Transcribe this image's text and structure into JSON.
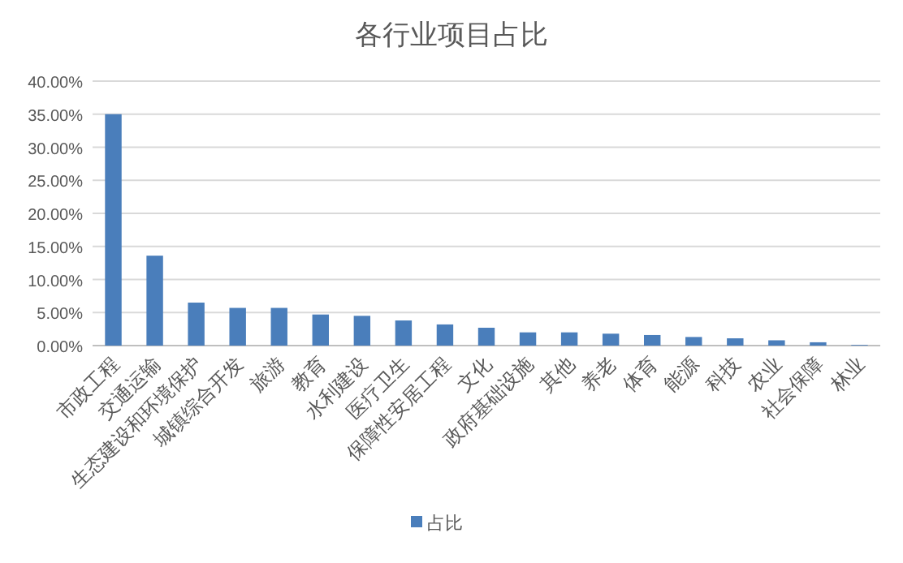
{
  "chart_data": {
    "type": "bar",
    "title": "各行业项目占比",
    "categories": [
      "市政工程",
      "交通运输",
      "生态建设和环境保护",
      "城镇综合开发",
      "旅游",
      "教育",
      "水利建设",
      "医疗卫生",
      "保障性安居工程",
      "文化",
      "政府基础设施",
      "其他",
      "养老",
      "体育",
      "能源",
      "科技",
      "农业",
      "社会保障",
      "林业"
    ],
    "series": [
      {
        "name": "占比",
        "color": "#4a7ebb",
        "values": [
          35.0,
          13.6,
          6.5,
          5.7,
          5.7,
          4.7,
          4.5,
          3.8,
          3.2,
          2.7,
          2.0,
          2.0,
          1.8,
          1.6,
          1.3,
          1.1,
          0.8,
          0.5,
          0.1
        ]
      }
    ],
    "ylim": [
      0,
      40
    ],
    "yticks": [
      {
        "value": 0,
        "label": "0.00%"
      },
      {
        "value": 5,
        "label": "5.00%"
      },
      {
        "value": 10,
        "label": "10.00%"
      },
      {
        "value": 15,
        "label": "15.00%"
      },
      {
        "value": 20,
        "label": "20.00%"
      },
      {
        "value": 25,
        "label": "25.00%"
      },
      {
        "value": 30,
        "label": "30.00%"
      },
      {
        "value": 35,
        "label": "35.00%"
      },
      {
        "value": 40,
        "label": "40.00%"
      }
    ],
    "grid": "y",
    "legend": "bottom"
  }
}
